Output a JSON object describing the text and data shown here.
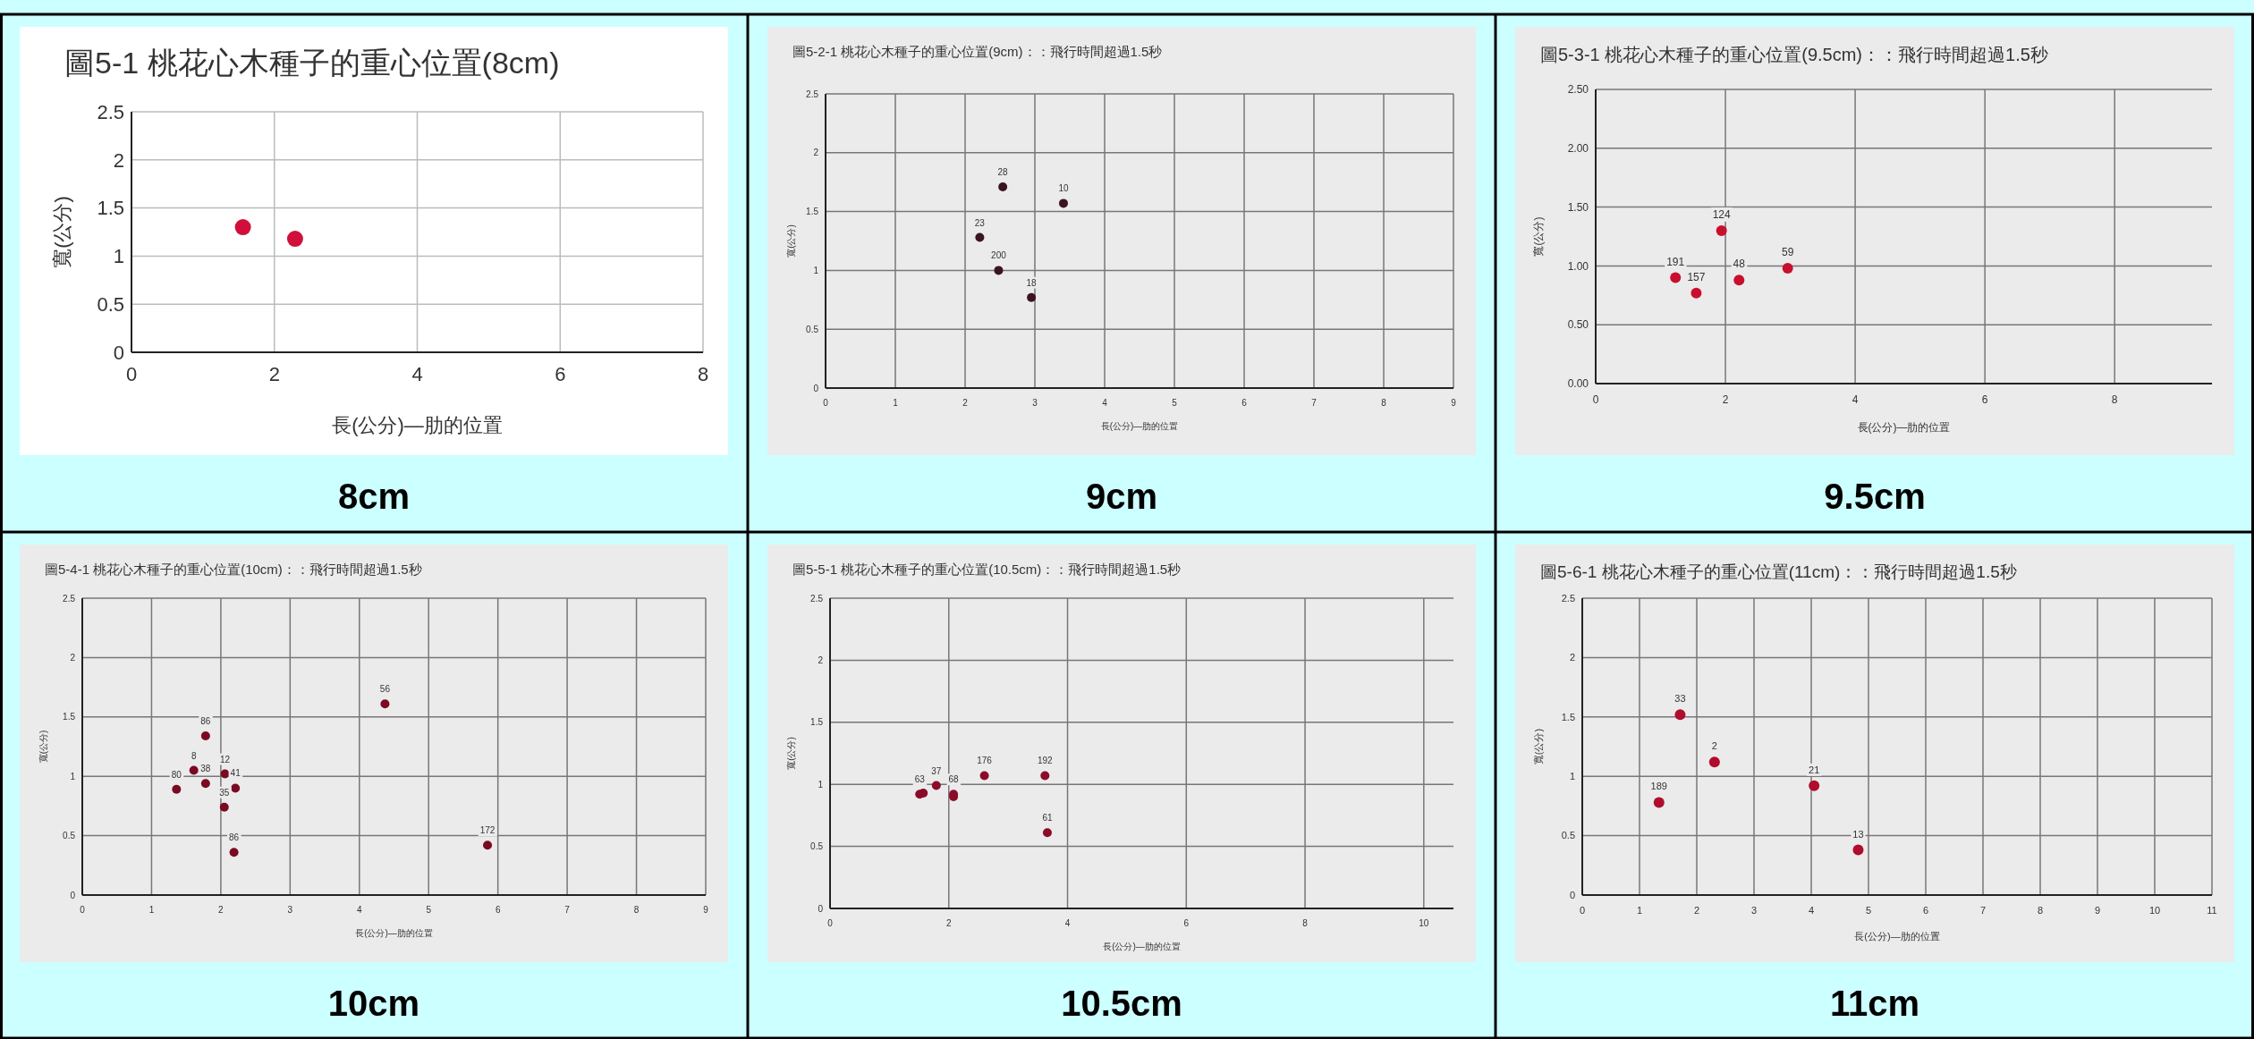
{
  "chart_data": [
    {
      "type": "scatter",
      "title": "圖5-1 桃花心木種子的重心位置(8cm)",
      "xlabel": "長(公分)—肋的位置",
      "ylabel": "寬(公分)",
      "annotations": [
        "8cm"
      ],
      "marker": "circle",
      "grid": true,
      "color": "#d0103a",
      "xlim": [
        0,
        8
      ],
      "xticks": [
        0,
        2,
        4,
        6,
        8
      ],
      "ylim": [
        0,
        2.5
      ],
      "yticks": [
        0,
        0.5,
        1,
        1.5,
        2,
        2.5
      ],
      "x": [
        1.56,
        2.29
      ],
      "values": [
        1.3,
        1.18
      ]
    },
    {
      "type": "scatter",
      "title": "圖5-2-1 桃花心木種子的重心位置(9cm)：：飛行時間超過1.5秒",
      "xlabel": "長(公分)—肋的位置",
      "ylabel": "寬(公分)",
      "marker": "circle",
      "grid": true,
      "color": "#3b1420",
      "xlim": [
        0,
        9
      ],
      "xticks": [
        0,
        1,
        2,
        3,
        4,
        5,
        6,
        7,
        8,
        9
      ],
      "ylim": [
        0,
        2.5
      ],
      "yticks": [
        0,
        0.5,
        1,
        1.5,
        2,
        2.5
      ],
      "x": [
        2.54,
        3.41,
        2.21,
        2.48,
        2.95
      ],
      "values": [
        1.71,
        1.57,
        1.28,
        1.0,
        0.77
      ],
      "annotations": [
        "9cm",
        {
          "text": "28",
          "x": 2.54,
          "y": 1.71
        },
        {
          "text": "10",
          "x": 3.41,
          "y": 1.57
        },
        {
          "text": "23",
          "x": 2.21,
          "y": 1.28
        },
        {
          "text": "200",
          "x": 2.48,
          "y": 1.0
        },
        {
          "text": "18",
          "x": 2.95,
          "y": 0.77
        }
      ]
    },
    {
      "type": "scatter",
      "title": "圖5-3-1 桃花心木種子的重心位置(9.5cm)：：飛行時間超過1.5秒",
      "xlabel": "長(公分)—肋的位置",
      "ylabel": "寬(公分)",
      "marker": "circle",
      "grid": true,
      "color": "#c8102e",
      "xlim": [
        0,
        9.5
      ],
      "xticks": [
        0,
        2,
        4,
        6,
        8
      ],
      "ylim": [
        0,
        2.5
      ],
      "yticks": [
        {
          "value": 0,
          "label": "0.00"
        },
        {
          "value": 0.5,
          "label": "0.50"
        },
        {
          "value": 1,
          "label": "1.00"
        },
        {
          "value": 1.5,
          "label": "1.50"
        },
        {
          "value": 2,
          "label": "2.00"
        },
        {
          "value": 2.5,
          "label": "2.50"
        }
      ],
      "x": [
        1.94,
        1.23,
        1.55,
        2.21,
        2.96
      ],
      "values": [
        1.3,
        0.9,
        0.77,
        0.88,
        0.98
      ],
      "annotations": [
        "9.5cm",
        {
          "text": "124",
          "x": 1.94,
          "y": 1.3
        },
        {
          "text": "191",
          "x": 1.23,
          "y": 0.9
        },
        {
          "text": "157",
          "x": 1.55,
          "y": 0.77
        },
        {
          "text": "48",
          "x": 2.21,
          "y": 0.88
        },
        {
          "text": "59",
          "x": 2.96,
          "y": 0.98
        }
      ]
    },
    {
      "type": "scatter",
      "title": "圖5-4-1 桃花心木種子的重心位置(10cm)：：飛行時間超過1.5秒",
      "xlabel": "長(公分)—肋的位置",
      "ylabel": "寬(公分)",
      "marker": "circle",
      "grid": true,
      "color": "#7a0a22",
      "xlim": [
        0,
        9
      ],
      "xticks": [
        0,
        1,
        2,
        3,
        4,
        5,
        6,
        7,
        8,
        9
      ],
      "ylim": [
        0,
        2.5
      ],
      "yticks": [
        0,
        0.5,
        1,
        1.5,
        2,
        2.5
      ],
      "x": [
        4.37,
        1.78,
        1.61,
        1.78,
        2.06,
        2.21,
        1.36,
        2.05,
        2.19,
        5.85
      ],
      "values": [
        1.61,
        1.34,
        1.05,
        0.94,
        1.02,
        0.9,
        0.89,
        0.74,
        0.36,
        0.42
      ],
      "annotations": [
        "10cm",
        {
          "text": "56",
          "x": 4.37,
          "y": 1.61
        },
        {
          "text": "86",
          "x": 1.78,
          "y": 1.34
        },
        {
          "text": "8",
          "x": 1.61,
          "y": 1.05
        },
        {
          "text": "38",
          "x": 1.78,
          "y": 0.94
        },
        {
          "text": "12",
          "x": 2.06,
          "y": 1.02
        },
        {
          "text": "41",
          "x": 2.21,
          "y": 0.9
        },
        {
          "text": "80",
          "x": 1.36,
          "y": 0.89
        },
        {
          "text": "35",
          "x": 2.05,
          "y": 0.74
        },
        {
          "text": "86",
          "x": 2.19,
          "y": 0.36
        },
        {
          "text": "172",
          "x": 5.85,
          "y": 0.42
        }
      ]
    },
    {
      "type": "scatter",
      "title": "圖5-5-1 桃花心木種子的重心位置(10.5cm)：：飛行時間超過1.5秒",
      "xlabel": "長(公分)—肋的位置",
      "ylabel": "寬(公分)",
      "marker": "circle",
      "grid": true,
      "color": "#8a0c28",
      "xlim": [
        0,
        10.5
      ],
      "xticks": [
        0,
        2,
        4,
        6,
        8,
        10
      ],
      "ylim": [
        0,
        2.5
      ],
      "yticks": [
        0,
        0.5,
        1,
        1.5,
        2,
        2.5
      ],
      "x": [
        1.51,
        1.57,
        1.79,
        2.08,
        2.08,
        2.6,
        3.62,
        3.66
      ],
      "values": [
        0.92,
        0.93,
        0.99,
        0.92,
        0.9,
        1.07,
        1.07,
        0.61
      ],
      "annotations": [
        "10.5cm",
        {
          "text": "63",
          "x": 1.51,
          "y": 0.92
        },
        {
          "text": "37",
          "x": 1.79,
          "y": 0.99
        },
        {
          "text": "68",
          "x": 2.08,
          "y": 0.92
        },
        {
          "text": "176",
          "x": 2.6,
          "y": 1.07
        },
        {
          "text": "192",
          "x": 3.62,
          "y": 1.07
        },
        {
          "text": "61",
          "x": 3.66,
          "y": 0.61
        }
      ]
    },
    {
      "type": "scatter",
      "title": "圖5-6-1 桃花心木種子的重心位置(11cm)：：飛行時間超過1.5秒",
      "xlabel": "長(公分)—肋的位置",
      "ylabel": "寬(公分)",
      "marker": "circle",
      "grid": true,
      "color": "#b00c2c",
      "xlim": [
        0,
        11
      ],
      "xticks": [
        0,
        1,
        2,
        3,
        4,
        5,
        6,
        7,
        8,
        9,
        10,
        11
      ],
      "ylim": [
        0,
        2.5
      ],
      "yticks": [
        0,
        0.5,
        1,
        1.5,
        2,
        2.5
      ],
      "x": [
        1.71,
        2.31,
        1.34,
        4.05,
        4.82
      ],
      "values": [
        1.52,
        1.12,
        0.78,
        0.92,
        0.38
      ],
      "annotations": [
        "11cm",
        {
          "text": "33",
          "x": 1.71,
          "y": 1.52
        },
        {
          "text": "2",
          "x": 2.31,
          "y": 1.12
        },
        {
          "text": "189",
          "x": 1.34,
          "y": 0.78
        },
        {
          "text": "21",
          "x": 4.05,
          "y": 0.92
        },
        {
          "text": "13",
          "x": 4.82,
          "y": 0.38
        }
      ]
    }
  ]
}
